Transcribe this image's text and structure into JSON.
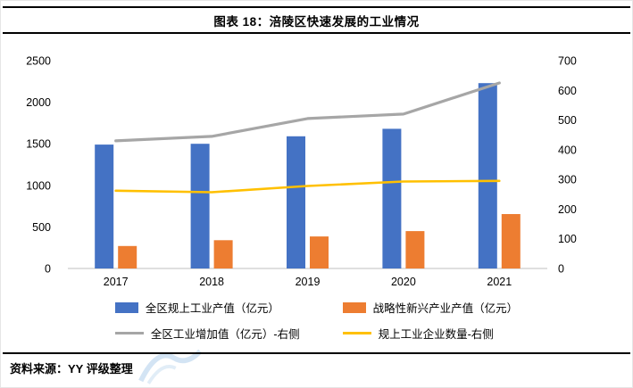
{
  "header": {
    "title": "图表 18：涪陵区快速发展的工业情况"
  },
  "footer": {
    "source": "资料来源：YY 评级整理"
  },
  "colors": {
    "bar_primary": "#4472C4",
    "bar_secondary": "#ED7D31",
    "line_gray": "#A6A6A6",
    "line_yellow": "#FFC000",
    "axis_line": "#BFBFBF"
  },
  "chart_data": {
    "type": "bar",
    "subtype": "combo-bar-line",
    "title": "图表 18：涪陵区快速发展的工业情况",
    "categories": [
      "2017",
      "2018",
      "2019",
      "2020",
      "2021"
    ],
    "series": [
      {
        "name": "全区规上工业产值（亿元）",
        "type": "bar",
        "axis": "left",
        "color": "#4472C4",
        "values": [
          1490,
          1500,
          1590,
          1680,
          2230
        ]
      },
      {
        "name": "战略性新兴产业产值（亿元）",
        "type": "bar",
        "axis": "left",
        "color": "#ED7D31",
        "values": [
          270,
          340,
          385,
          450,
          655
        ]
      },
      {
        "name": "全区工业增加值（亿元）-右侧",
        "type": "line",
        "axis": "right",
        "color": "#A6A6A6",
        "values": [
          430,
          445,
          505,
          520,
          625
        ]
      },
      {
        "name": "规上工业企业数量-右侧",
        "type": "line",
        "axis": "right",
        "color": "#FFC000",
        "values": [
          262,
          257,
          278,
          293,
          295
        ]
      }
    ],
    "left_axis": {
      "min": 0,
      "max": 2500,
      "step": 500,
      "ticks": [
        "0",
        "500",
        "1000",
        "1500",
        "2000",
        "2500"
      ]
    },
    "right_axis": {
      "min": 0,
      "max": 700,
      "step": 100,
      "ticks": [
        "0",
        "100",
        "200",
        "300",
        "400",
        "500",
        "600",
        "700"
      ]
    },
    "legend_position": "bottom",
    "grid": false,
    "xlabel": "",
    "ylabel": ""
  }
}
